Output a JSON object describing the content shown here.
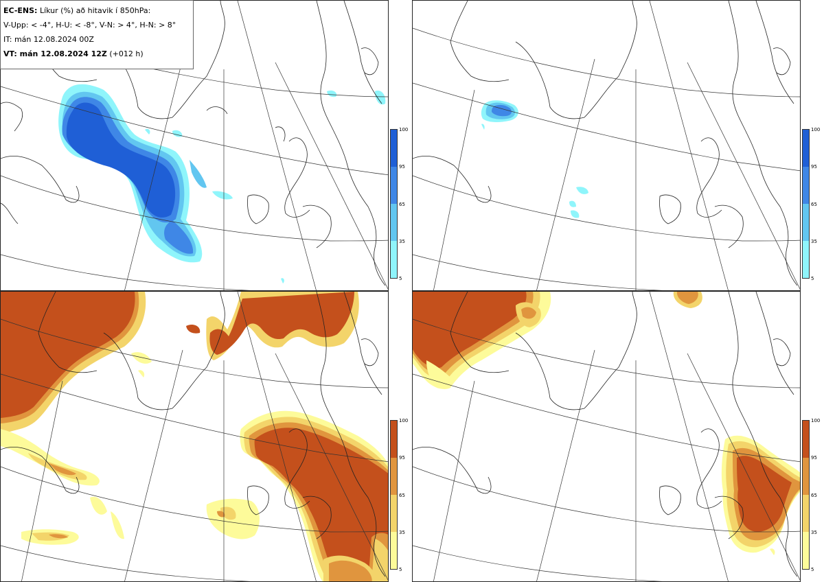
{
  "header": {
    "model": "EC-ENS:",
    "description": "Líkur (%) að hitavik í 850hPa:",
    "thresholds": "V-Upp: < -4°, H-U: < -8°, V-N: > 4°, H-N: > 8°",
    "init_time": "IT: mán 12.08.2024 00Z",
    "valid_prefix": "VT: mán 12.08.2024 12Z",
    "valid_suffix": "(+012 h)"
  },
  "colorbar": {
    "ticks": [
      "100",
      "95",
      "65",
      "35",
      "5"
    ],
    "cold_colors": [
      "#1f5fd6",
      "#3f87e6",
      "#62c6f0",
      "#8ff5fb"
    ],
    "warm_colors": [
      "#c4501c",
      "#e0953e",
      "#f3d46a",
      "#fdfb9a"
    ]
  },
  "panels": [
    {
      "name": "cold-4",
      "label": "V-Upp",
      "scheme": "cold"
    },
    {
      "name": "cold-8",
      "label": "H-U",
      "scheme": "cold"
    },
    {
      "name": "warm-4",
      "label": "V-N",
      "scheme": "warm"
    },
    {
      "name": "warm-8",
      "label": "H-N",
      "scheme": "warm"
    }
  ],
  "colors": {
    "coast": "#222222",
    "grid": "#333333",
    "background": "#ffffff"
  }
}
